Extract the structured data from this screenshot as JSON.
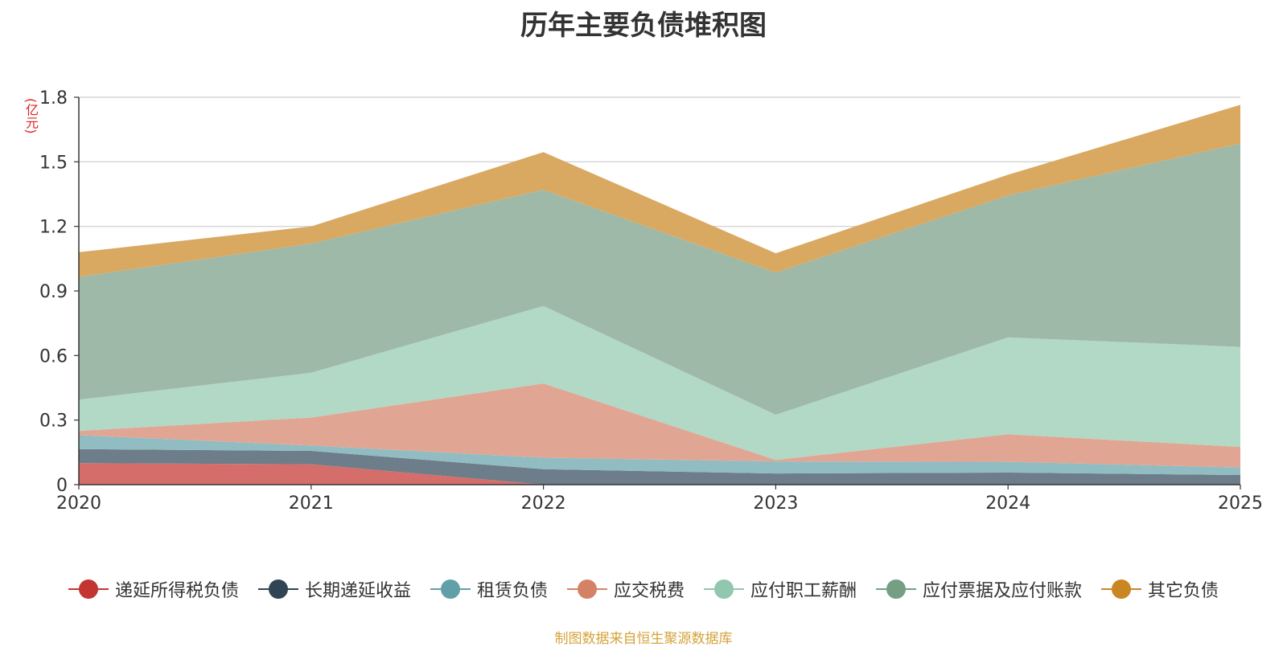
{
  "chart_data": {
    "type": "area",
    "stacked": true,
    "title": "历年主要负债堆积图",
    "unit": "(亿元)",
    "categories": [
      "2020",
      "2021",
      "2022",
      "2023",
      "2024",
      "2025"
    ],
    "ylim": [
      0,
      1.8
    ],
    "yticks": [
      "0",
      "0.3",
      "0.6",
      "0.9",
      "1.2",
      "1.5",
      "1.8"
    ],
    "grid": true,
    "legend_position": "bottom",
    "series": [
      {
        "name": "递延所得税负债",
        "color": "#c23531",
        "fill": "#d56e6b",
        "values": [
          0.1,
          0.095,
          0.0,
          0.0,
          0.0,
          0.0
        ]
      },
      {
        "name": "长期递延收益",
        "color": "#2f4554",
        "fill": "#6d7d89",
        "values": [
          0.065,
          0.062,
          0.072,
          0.052,
          0.056,
          0.045
        ]
      },
      {
        "name": "租赁负债",
        "color": "#61a0a8",
        "fill": "#90bcc2",
        "values": [
          0.065,
          0.025,
          0.053,
          0.056,
          0.05,
          0.035
        ]
      },
      {
        "name": "应交税费",
        "color": "#d48265",
        "fill": "#e1a693",
        "values": [
          0.02,
          0.13,
          0.345,
          0.007,
          0.128,
          0.095
        ]
      },
      {
        "name": "应付职工薪酬",
        "color": "#91c7ae",
        "fill": "#b2d8c6",
        "values": [
          0.145,
          0.208,
          0.36,
          0.21,
          0.45,
          0.465
        ]
      },
      {
        "name": "应付票据及应付账款",
        "color": "#749f83",
        "fill": "#9eb9a8",
        "values": [
          0.57,
          0.6,
          0.54,
          0.66,
          0.66,
          0.945
        ]
      },
      {
        "name": "其它负债",
        "color": "#ca8622",
        "fill": "#d9a962",
        "values": [
          0.115,
          0.08,
          0.175,
          0.09,
          0.096,
          0.18
        ]
      }
    ]
  },
  "source_note": "制图数据来自恒生聚源数据库"
}
